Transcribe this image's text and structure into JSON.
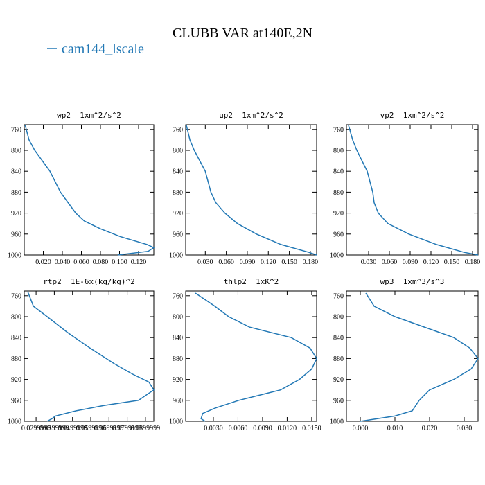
{
  "figure": {
    "title": "CLUBB VAR at140E,2N",
    "legend": "cam144_lscale",
    "color": "#2278b5"
  },
  "chart_data": [
    {
      "type": "line",
      "title": "wp2  1xm^2/s^2",
      "levels": [
        752,
        780,
        800,
        840,
        880,
        900,
        920,
        935,
        950,
        965,
        980,
        986,
        993,
        1000
      ],
      "values": [
        0.001,
        0.005,
        0.011,
        0.027,
        0.038,
        0.046,
        0.054,
        0.063,
        0.08,
        0.101,
        0.129,
        0.136,
        0.13,
        0.098
      ],
      "xlim": [
        0,
        0.136
      ],
      "ylim": [
        1000,
        751
      ],
      "xticks": [
        {
          "value": 0.02,
          "label": "0.020"
        },
        {
          "value": 0.04,
          "label": "0.040"
        },
        {
          "value": 0.06,
          "label": "0.060"
        },
        {
          "value": 0.08,
          "label": "0.080"
        },
        {
          "value": 0.1,
          "label": "0.100"
        },
        {
          "value": 0.12,
          "label": "0.120"
        }
      ],
      "yticks": [
        760,
        800,
        840,
        880,
        920,
        960,
        1000
      ]
    },
    {
      "type": "line",
      "title": "up2  1xm^2/s^2",
      "levels": [
        752,
        780,
        800,
        840,
        880,
        900,
        920,
        940,
        960,
        980,
        995,
        1000
      ],
      "values": [
        0.003,
        0.008,
        0.0143,
        0.03,
        0.038,
        0.045,
        0.058,
        0.076,
        0.103,
        0.138,
        0.178,
        0.189
      ],
      "xlim": [
        0.002,
        0.189
      ],
      "ylim": [
        1000,
        751
      ],
      "xticks": [
        {
          "value": 0.03,
          "label": "0.030"
        },
        {
          "value": 0.06,
          "label": "0.060"
        },
        {
          "value": 0.09,
          "label": "0.090"
        },
        {
          "value": 0.12,
          "label": "0.120"
        },
        {
          "value": 0.15,
          "label": "0.150"
        },
        {
          "value": 0.18,
          "label": "0.180"
        }
      ],
      "yticks": [
        760,
        800,
        840,
        880,
        920,
        960,
        1000
      ]
    },
    {
      "type": "line",
      "title": "vp2  1xm^2/s^2",
      "levels": [
        752,
        780,
        800,
        840,
        880,
        900,
        920,
        940,
        960,
        980,
        995,
        1000
      ],
      "values": [
        0.001,
        0.007,
        0.013,
        0.028,
        0.036,
        0.038,
        0.044,
        0.058,
        0.088,
        0.128,
        0.168,
        0.188
      ],
      "xlim": [
        -0.002,
        0.188
      ],
      "ylim": [
        1000,
        751
      ],
      "xticks": [
        {
          "value": 0.03,
          "label": "0.030"
        },
        {
          "value": 0.06,
          "label": "0.060"
        },
        {
          "value": 0.09,
          "label": "0.090"
        },
        {
          "value": 0.12,
          "label": "0.120"
        },
        {
          "value": 0.15,
          "label": "0.150"
        },
        {
          "value": 0.18,
          "label": "0.180"
        }
      ],
      "yticks": [
        760,
        800,
        840,
        880,
        920,
        960,
        1000
      ]
    },
    {
      "type": "line",
      "title": "rtp2  1E-6x(kg/kg)^2",
      "levels": [
        752,
        780,
        800,
        830,
        860,
        890,
        910,
        925,
        940,
        960,
        970,
        980,
        990,
        995,
        1000
      ],
      "values": [
        0.0254,
        0.0285,
        0.0361,
        0.0471,
        0.0596,
        0.0729,
        0.083,
        0.0919,
        0.0946,
        0.0862,
        0.0672,
        0.052,
        0.0406,
        0.0387,
        0.0361
      ],
      "xlim": [
        0.0235,
        0.0946
      ],
      "ylim": [
        1000,
        751
      ],
      "xticks": [
        {
          "value": 0.03,
          "label": "0.0299999"
        },
        {
          "value": 0.04,
          "label": "0.0399999"
        },
        {
          "value": 0.05,
          "label": "0.0499999"
        },
        {
          "value": 0.06,
          "label": "0.0599999"
        },
        {
          "value": 0.07,
          "label": "0.0699999"
        },
        {
          "value": 0.08,
          "label": "0.0799999"
        },
        {
          "value": 0.09,
          "label": "0.0899999"
        }
      ],
      "yticks": [
        760,
        800,
        840,
        880,
        920,
        960,
        1000
      ]
    },
    {
      "type": "line",
      "title": "thlp2  1xK^2",
      "levels": [
        755,
        780,
        800,
        820,
        840,
        860,
        880,
        900,
        920,
        940,
        960,
        975,
        985,
        995,
        1000
      ],
      "values": [
        0.0008,
        0.00317,
        0.00486,
        0.0074,
        0.0125,
        0.0148,
        0.0156,
        0.015,
        0.0135,
        0.0112,
        0.0061,
        0.0032,
        0.0017,
        0.0015,
        0.002
      ],
      "xlim": [
        -0.00038,
        0.0156
      ],
      "ylim": [
        1000,
        751
      ],
      "xticks": [
        {
          "value": 0.003,
          "label": "0.0030"
        },
        {
          "value": 0.006,
          "label": "0.0060"
        },
        {
          "value": 0.009,
          "label": "0.0090"
        },
        {
          "value": 0.012,
          "label": "0.0120"
        },
        {
          "value": 0.015,
          "label": "0.0150"
        }
      ],
      "yticks": [
        760,
        800,
        840,
        880,
        920,
        960,
        1000
      ]
    },
    {
      "type": "line",
      "title": "wp3  1xm^3/s^3",
      "levels": [
        755,
        780,
        800,
        840,
        860,
        880,
        900,
        920,
        940,
        960,
        980,
        990,
        1000
      ],
      "values": [
        0.0016,
        0.004,
        0.01,
        0.027,
        0.0316,
        0.034,
        0.032,
        0.027,
        0.02,
        0.017,
        0.015,
        0.01,
        0
      ],
      "xlim": [
        -0.004,
        0.034
      ],
      "ylim": [
        1000,
        751
      ],
      "xticks": [
        {
          "value": 0,
          "label": "0.000"
        },
        {
          "value": 0.01,
          "label": "0.010"
        },
        {
          "value": 0.02,
          "label": "0.020"
        },
        {
          "value": 0.03,
          "label": "0.030"
        }
      ],
      "yticks": [
        760,
        800,
        840,
        880,
        920,
        960,
        1000
      ]
    }
  ]
}
